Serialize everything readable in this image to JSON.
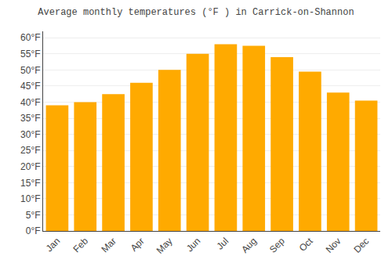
{
  "chart_data": {
    "type": "bar",
    "title": "Average monthly temperatures (°F ) in Carrick-on-Shannon",
    "categories": [
      "Jan",
      "Feb",
      "Mar",
      "Apr",
      "May",
      "Jun",
      "Jul",
      "Aug",
      "Sep",
      "Oct",
      "Nov",
      "Dec"
    ],
    "values": [
      39,
      40,
      42.5,
      46,
      50,
      55,
      58,
      57.5,
      54,
      49.5,
      43,
      40.5
    ],
    "color": "#FFAA00",
    "ylim": [
      0,
      62
    ],
    "yticks": [
      {
        "value": 0,
        "label": "0°F"
      },
      {
        "value": 5,
        "label": "5°F"
      },
      {
        "value": 10,
        "label": "10°F"
      },
      {
        "value": 15,
        "label": "15°F"
      },
      {
        "value": 20,
        "label": "20°F"
      },
      {
        "value": 25,
        "label": "25°F"
      },
      {
        "value": 30,
        "label": "30°F"
      },
      {
        "value": 35,
        "label": "35°F"
      },
      {
        "value": 40,
        "label": "40°F"
      },
      {
        "value": 45,
        "label": "45°F"
      },
      {
        "value": 50,
        "label": "50°F"
      },
      {
        "value": 55,
        "label": "55°F"
      },
      {
        "value": 60,
        "label": "60°F"
      }
    ],
    "grid": true
  }
}
